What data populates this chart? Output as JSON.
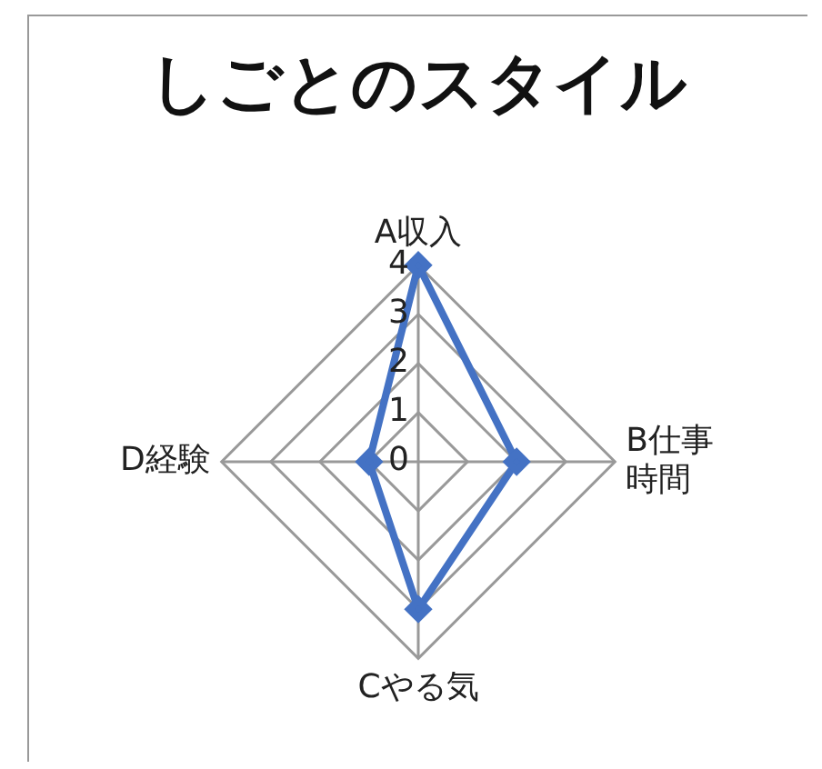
{
  "chart_data": {
    "type": "radar",
    "title": "しごとのスタイル",
    "categories": [
      "A収入",
      "B仕事時間",
      "Cやる気",
      "D経験"
    ],
    "series": [
      {
        "color": "#4472c4",
        "values": [
          4,
          2,
          3,
          1
        ]
      }
    ],
    "ylim": [
      0,
      4
    ],
    "yticks": [
      0,
      1,
      2,
      3,
      4
    ],
    "grid": true,
    "legend": false,
    "marker": "diamond"
  }
}
